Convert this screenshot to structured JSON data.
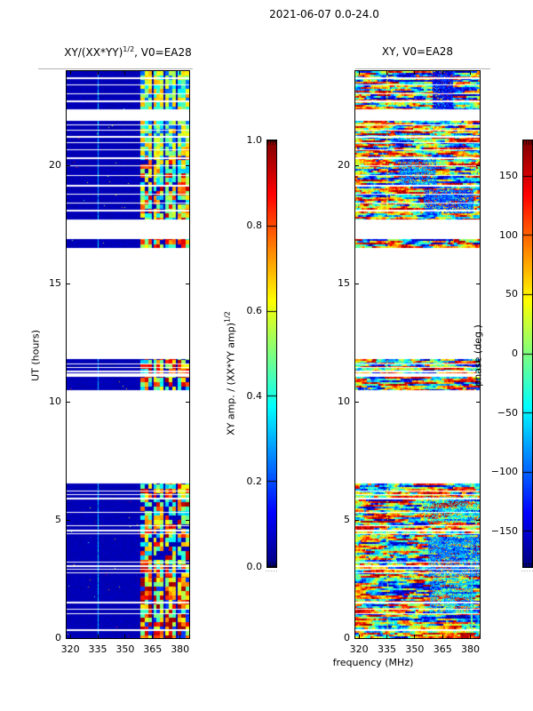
{
  "figure": {
    "title": "2021-06-07 0.0-24.0",
    "background_color": "#ffffff"
  },
  "left_plot": {
    "title": {
      "pre": "XY/(XX*YY)",
      "sup": "1/2",
      "post": ", V0=EA28"
    },
    "ylabel": "UT (hours)",
    "xticks": {
      "values": [
        320,
        335,
        350,
        365,
        380
      ],
      "labels": [
        "320",
        "335",
        "350",
        "365",
        "380"
      ]
    },
    "yticks": {
      "values": [
        0,
        5,
        10,
        15,
        20
      ],
      "labels": [
        "0",
        "5",
        "10",
        "15",
        "20"
      ]
    },
    "freq_range": [
      318,
      385
    ],
    "hour_range": [
      0,
      24
    ]
  },
  "right_plot": {
    "title": "XY, V0=EA28",
    "xlabel": "frequency (MHz)",
    "xticks": {
      "values": [
        320,
        335,
        350,
        365,
        380
      ],
      "labels": [
        "320",
        "335",
        "350",
        "365",
        "380"
      ]
    },
    "yticks": {
      "values": [
        0,
        5,
        10,
        15,
        20
      ],
      "labels": [
        "0",
        "5",
        "10",
        "15",
        "20"
      ]
    },
    "freq_range": [
      318,
      385
    ],
    "hour_range": [
      0,
      24
    ]
  },
  "colorbar_left": {
    "label": {
      "pre": "XY amp. / (XX*YY amp)",
      "sup": "1/2",
      "post": ""
    },
    "ticks": {
      "values": [
        1.0,
        0.8,
        0.6,
        0.4,
        0.2,
        0.0
      ],
      "labels": [
        "1.0",
        "0.8",
        "0.6",
        "0.4",
        "0.2",
        "0.0"
      ]
    },
    "vmin": 0,
    "vmax": 1,
    "dots": "·····"
  },
  "colorbar_right": {
    "label": "phase (deg.)",
    "ticks": {
      "values": [
        150,
        100,
        50,
        0,
        -50,
        -100,
        -150
      ],
      "labels": [
        "150",
        "100",
        "50",
        "0",
        "−50",
        "−100",
        "−150"
      ]
    },
    "vmin": -180,
    "vmax": 180,
    "dots": "·····"
  },
  "chart_data": {
    "type": "heatmap",
    "colormap": "jet",
    "x_axis": {
      "label": "frequency (MHz)",
      "range": [
        318,
        385
      ],
      "ticks": [
        320,
        335,
        350,
        365,
        380
      ]
    },
    "y_axis": {
      "label": "UT (hours)",
      "range": [
        0,
        24
      ],
      "ticks": [
        0,
        5,
        10,
        15,
        20
      ]
    },
    "panels": [
      {
        "name": "left",
        "title": "XY/(XX*YY)^(1/2), V0=EA28",
        "quantity": "XY amp. / (XX*YY amp)^(1/2)",
        "value_range": [
          0,
          1
        ],
        "description": "Low amplitude (~0.05, dark navy) from 318-358 MHz; bright blocky high-amplitude band (0.3-1.0, cyan/yellow/orange/red) from ~358-385 MHz; faint lighter vertical line near 335 MHz; white rows are missing data."
      },
      {
        "name": "right",
        "title": "XY, V0=EA28",
        "quantity": "phase (deg.)",
        "value_range": [
          -180,
          180
        ],
        "description": "Full-band noisy phase with horizontal streaks, dominated by +50..+180 deg (yellow/orange/red) with coherent patches of -50..-170 deg (cyan/blue); same missing-data rows as left panel."
      }
    ],
    "time_bands": [
      {
        "start": 22.4,
        "end": 24.0,
        "kind": "data"
      },
      {
        "start": 21.9,
        "end": 22.4,
        "kind": "gap"
      },
      {
        "start": 17.7,
        "end": 21.9,
        "kind": "data"
      },
      {
        "start": 16.9,
        "end": 17.7,
        "kind": "gap"
      },
      {
        "start": 16.5,
        "end": 16.9,
        "kind": "data"
      },
      {
        "start": 11.8,
        "end": 16.5,
        "kind": "gap"
      },
      {
        "start": 11.2,
        "end": 11.8,
        "kind": "data"
      },
      {
        "start": 11.05,
        "end": 11.2,
        "kind": "gap"
      },
      {
        "start": 10.5,
        "end": 11.05,
        "kind": "data"
      },
      {
        "start": 6.55,
        "end": 10.5,
        "kind": "gap"
      },
      {
        "start": 0.0,
        "end": 6.55,
        "kind": "data"
      }
    ],
    "white_lines_hours": [
      23.75,
      23.45,
      23.05,
      22.75,
      21.75,
      21.5,
      21.25,
      21.0,
      20.7,
      20.35,
      20.0,
      19.6,
      19.2,
      18.8,
      18.45,
      18.15,
      11.62,
      11.48,
      11.34,
      6.25,
      6.1,
      5.95,
      5.35,
      4.78,
      4.6,
      4.45,
      3.24,
      3.09,
      2.94,
      2.79,
      1.55,
      1.25,
      1.06,
      0.38
    ],
    "left_features": {
      "background_value": 0.05,
      "bright_band": [
        0.6,
        1.0
      ],
      "subcols": [
        [
          0.6,
          0.695
        ],
        [
          0.705,
          0.785
        ],
        [
          0.8,
          0.885
        ],
        [
          0.9,
          1.0
        ]
      ],
      "vline_x": 0.253
    },
    "right_features": {
      "patches": [
        {
          "h0": 22.4,
          "h1": 24.0,
          "x0": 0.62,
          "x1": 0.78,
          "v": 0.12,
          "p": 0.85
        },
        {
          "h0": 19.2,
          "h1": 20.3,
          "x0": 0.35,
          "x1": 0.65,
          "v": 0.25,
          "p": 0.5
        },
        {
          "h0": 18.0,
          "h1": 19.0,
          "x0": 0.55,
          "x1": 0.95,
          "v": 0.2,
          "p": 0.65
        },
        {
          "h0": 2.6,
          "h1": 4.3,
          "x0": 0.58,
          "x1": 1.0,
          "v": 0.25,
          "p": 0.65
        },
        {
          "h0": 1.0,
          "h1": 2.5,
          "x0": 0.6,
          "x1": 0.95,
          "v": 0.3,
          "p": 0.45
        },
        {
          "h0": 4.9,
          "h1": 6.0,
          "x0": 0.55,
          "x1": 1.0,
          "v": 0.35,
          "p": 0.4
        },
        {
          "h0": 0.3,
          "h1": 4.3,
          "x0": 0.925,
          "x1": 0.94,
          "v": 0.45,
          "p": 0.9
        },
        {
          "h0": 0.0,
          "h1": 24.0,
          "x0": 0.25,
          "x1": 0.258,
          "v": 0.6,
          "p": 0.35
        }
      ]
    }
  }
}
